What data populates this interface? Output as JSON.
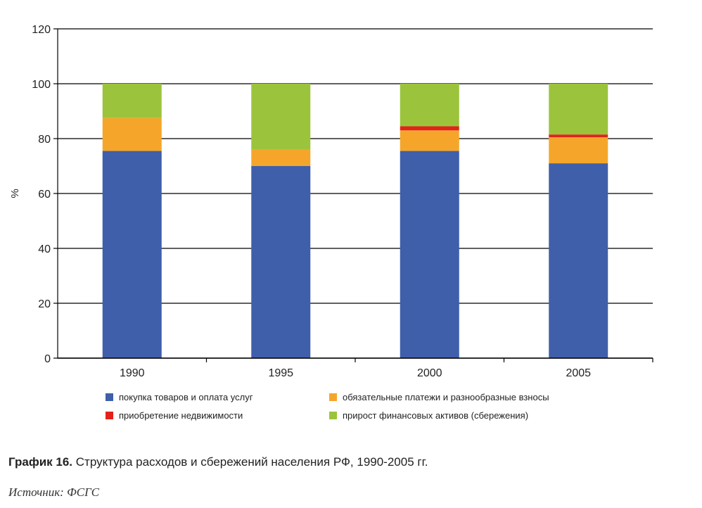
{
  "chart_data": {
    "type": "bar",
    "stacked": true,
    "ylabel": "%",
    "ylim": [
      0,
      120
    ],
    "yticks": [
      0,
      20,
      40,
      60,
      80,
      100,
      120
    ],
    "grid": true,
    "categories": [
      "1990",
      "1995",
      "2000",
      "2005"
    ],
    "series": [
      {
        "name": "покупка товаров и оплата услуг",
        "color": "#3f5faa",
        "values": [
          75.5,
          70,
          75.5,
          71
        ]
      },
      {
        "name": "обязательные платежи и разнообразные взносы",
        "color": "#f5a62a",
        "values": [
          12,
          6,
          7.5,
          9.5
        ]
      },
      {
        "name": "приобретение недвижимости",
        "color": "#e2231a",
        "values": [
          0,
          0,
          1.5,
          1
        ]
      },
      {
        "name": "прирост финансовых активов (сбережения)",
        "color": "#9bc43c",
        "values": [
          12.5,
          24,
          15.5,
          18.5
        ]
      }
    ],
    "legend_position": "bottom"
  },
  "caption": {
    "label": "График 16.",
    "text": " Структура расходов и сбережений населения РФ, 1990-2005 гг."
  },
  "source": "Источник: ФСГС"
}
